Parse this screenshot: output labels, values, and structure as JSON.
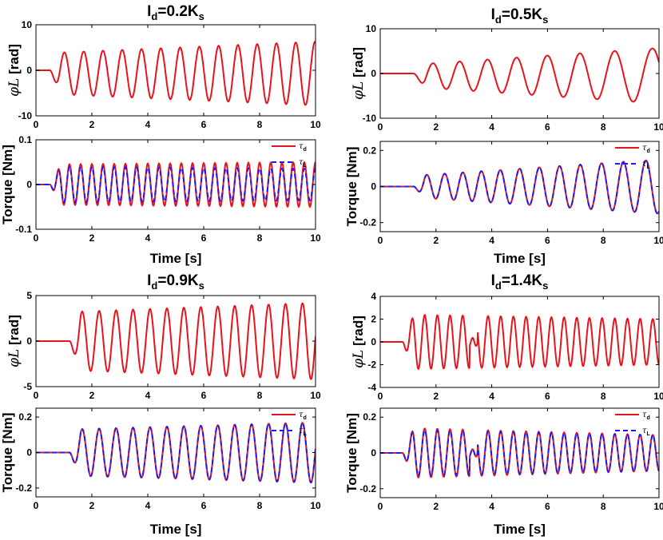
{
  "colors": {
    "tau_d": "#e8141c",
    "tau_L": "#1a1aff",
    "phi": "#e8141c",
    "axis": "#000000"
  },
  "xlabel": "Time [s]",
  "chart_data": [
    {
      "type": "line",
      "id": "p1",
      "title_main": "I",
      "title_sub1": "d",
      "title_mid": "=0.2K",
      "title_sub2": "s",
      "ylabel": "φL [rad]",
      "xlim": [
        0,
        10
      ],
      "ylim": [
        -10,
        10
      ],
      "xticks": [
        "0",
        "2",
        "4",
        "6",
        "8",
        "10"
      ],
      "yticks": [
        "10",
        "0",
        "-10"
      ],
      "series": [
        {
          "name": "φL",
          "onset": 0.5,
          "freq": 1.45,
          "amp_start": 4.5,
          "amp_end": 7,
          "bias": -0.7
        }
      ]
    },
    {
      "type": "line",
      "id": "p2",
      "title_main": "I",
      "title_sub1": "d",
      "title_mid": "=0.5K",
      "title_sub2": "s",
      "ylabel": "φL [rad]",
      "xlim": [
        0,
        10
      ],
      "ylim": [
        -10,
        10
      ],
      "xticks": [
        "0",
        "2",
        "4",
        "6",
        "8",
        "10"
      ],
      "yticks": [
        "10",
        "0",
        "-10"
      ],
      "series": [
        {
          "name": "φL",
          "onset": 1.2,
          "freq": 1.1,
          "freq_end": 0.7,
          "amp_start": 2.5,
          "amp_end": 6.2,
          "bias": -0.5
        }
      ]
    },
    {
      "type": "line",
      "id": "p3",
      "title_main": "",
      "title_sub1": "",
      "title_mid": "",
      "title_sub2": "",
      "ylabel": "Torque [Nm]",
      "xlim": [
        0,
        10
      ],
      "ylim": [
        -0.1,
        0.1
      ],
      "xticks": [
        "0",
        "2",
        "4",
        "6",
        "8",
        "10"
      ],
      "yticks": [
        "0.1",
        "0",
        "-0.1"
      ],
      "legend": [
        "τ_d",
        "τ_L"
      ],
      "series": [
        {
          "name": "τd",
          "onset": 0.5,
          "freq": 2.5,
          "amp_start": 0.045,
          "amp_end": 0.05,
          "bias": 0
        },
        {
          "name": "τL",
          "onset": 0.5,
          "freq": 2.5,
          "amp_start": 0.04,
          "amp_end": 0.035,
          "bias": 0
        }
      ]
    },
    {
      "type": "line",
      "id": "p4",
      "title_main": "",
      "title_sub1": "",
      "title_mid": "",
      "title_sub2": "",
      "ylabel": "Torque [Nm]",
      "xlim": [
        0,
        10
      ],
      "ylim": [
        -0.25,
        0.25
      ],
      "xticks": [
        "0",
        "2",
        "4",
        "6",
        "8",
        "10"
      ],
      "yticks": [
        "0.2",
        "0",
        "-0.2"
      ],
      "legend": [
        "τ_d",
        "τ_L"
      ],
      "series": [
        {
          "name": "τd",
          "onset": 1.2,
          "freq": 1.6,
          "freq_end": 1.2,
          "amp_start": 0.06,
          "amp_end": 0.15,
          "bias": 0
        },
        {
          "name": "τL",
          "onset": 1.2,
          "freq": 1.6,
          "freq_end": 1.2,
          "amp_start": 0.06,
          "amp_end": 0.15,
          "bias": 0
        }
      ]
    },
    {
      "type": "line",
      "id": "p5",
      "title_main": "I",
      "title_sub1": "d",
      "title_mid": "=0.9K",
      "title_sub2": "s",
      "ylabel": "φL [rad]",
      "xlim": [
        0,
        10
      ],
      "ylim": [
        -5,
        5
      ],
      "xticks": [
        "0",
        "2",
        "4",
        "6",
        "8",
        "10"
      ],
      "yticks": [
        "5",
        "0",
        "-5"
      ],
      "series": [
        {
          "name": "φL",
          "onset": 1.2,
          "freq": 1.65,
          "amp_start": 3.2,
          "amp_end": 4.2,
          "bias": 0
        }
      ]
    },
    {
      "type": "line",
      "id": "p6",
      "title_main": "I",
      "title_sub1": "d",
      "title_mid": "=1.4K",
      "title_sub2": "s",
      "ylabel": "φL [rad]",
      "xlim": [
        0,
        10
      ],
      "ylim": [
        -4,
        4
      ],
      "xticks": [
        "0",
        "2",
        "4",
        "6",
        "8",
        "10"
      ],
      "yticks": [
        "4",
        "2",
        "0",
        "-2",
        "-4"
      ],
      "series": [
        {
          "name": "φL",
          "onset": 0.8,
          "freq": 2.2,
          "amp_start": 2.4,
          "amp_end": 2.0,
          "bias": 0,
          "gap": [
            3.2,
            3.5
          ]
        }
      ]
    },
    {
      "type": "line",
      "id": "p7",
      "title_main": "",
      "title_sub1": "",
      "title_mid": "",
      "title_sub2": "",
      "ylabel": "Torque [Nm]",
      "xlim": [
        0,
        10
      ],
      "ylim": [
        -0.25,
        0.25
      ],
      "xticks": [
        "0",
        "2",
        "4",
        "6",
        "8",
        "10"
      ],
      "yticks": [
        "0.2",
        "0",
        "-0.2"
      ],
      "legend": [
        "τ_d",
        "τ_L"
      ],
      "series": [
        {
          "name": "τd",
          "onset": 1.2,
          "freq": 1.65,
          "amp_start": 0.13,
          "amp_end": 0.17,
          "bias": 0
        },
        {
          "name": "τL",
          "onset": 1.2,
          "freq": 1.65,
          "amp_start": 0.13,
          "amp_end": 0.17,
          "bias": 0
        }
      ]
    },
    {
      "type": "line",
      "id": "p8",
      "title_main": "",
      "title_sub1": "",
      "title_mid": "",
      "title_sub2": "",
      "ylabel": "Torque [Nm]",
      "xlim": [
        0,
        10
      ],
      "ylim": [
        -0.25,
        0.25
      ],
      "xticks": [
        "0",
        "2",
        "4",
        "6",
        "8",
        "10"
      ],
      "yticks": [
        "0.2",
        "0",
        "-0.2"
      ],
      "legend": [
        "τ_d",
        "τ_L"
      ],
      "series": [
        {
          "name": "τd",
          "onset": 0.8,
          "freq": 2.2,
          "amp_start": 0.14,
          "amp_end": 0.1,
          "bias": 0,
          "gap": [
            3.2,
            3.5
          ]
        },
        {
          "name": "τL",
          "onset": 0.8,
          "freq": 2.2,
          "amp_start": 0.13,
          "amp_end": 0.1,
          "bias": 0,
          "gap": [
            3.2,
            3.5
          ]
        }
      ]
    }
  ]
}
